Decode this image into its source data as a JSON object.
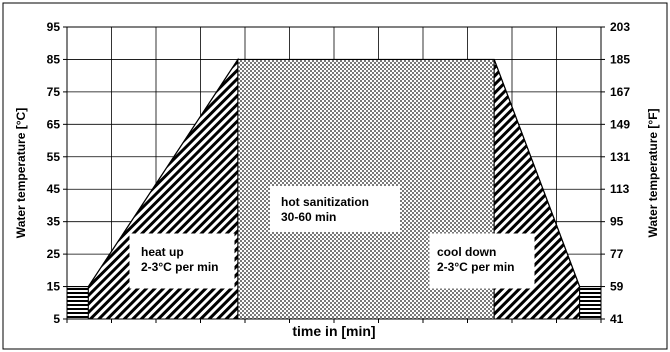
{
  "chart_data": {
    "type": "area",
    "xlabel": "time in [min]",
    "ylabel_left": "Water temperature [°C]",
    "ylabel_right": "Water temperature [°F]",
    "y_left_ticks": [
      5,
      15,
      25,
      35,
      45,
      55,
      65,
      75,
      85,
      95
    ],
    "y_right_ticks": [
      41,
      59,
      77,
      95,
      113,
      131,
      149,
      167,
      185,
      203
    ],
    "ylim": [
      5,
      95
    ],
    "x_tick_labels": [],
    "grid": true,
    "profile": {
      "x": [
        0,
        1,
        8,
        14,
        20,
        24,
        25
      ],
      "y": [
        15,
        15,
        85,
        85,
        85,
        15,
        15
      ]
    },
    "phases": [
      {
        "name": "heat up",
        "rate": "2-3°C per min"
      },
      {
        "name": "hot sanitization",
        "rate": "30-60 min"
      },
      {
        "name": "cool down",
        "rate": "2-3°C per min"
      }
    ]
  }
}
